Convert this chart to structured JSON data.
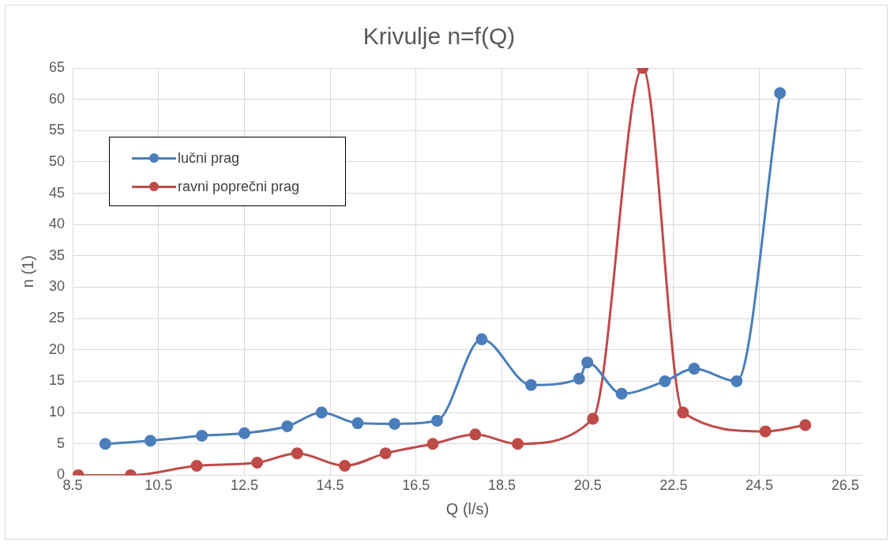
{
  "chart_data": {
    "type": "line",
    "title": "Krivulje n=f(Q)",
    "xlabel": "Q (l/s)",
    "ylabel": "n (1)",
    "xlim": [
      8.5,
      26.9
    ],
    "xticks": [
      8.5,
      10.5,
      12.5,
      14.5,
      16.5,
      18.5,
      20.5,
      22.5,
      24.5,
      26.5
    ],
    "ylim": [
      0,
      65
    ],
    "yticks": [
      0,
      5,
      10,
      15,
      20,
      25,
      30,
      35,
      40,
      45,
      50,
      55,
      60,
      65
    ],
    "grid": true,
    "legend": "top left",
    "marker": "circle",
    "line_style": "solid",
    "series": [
      {
        "name": "lučni prag",
        "color": "#4a7ebb",
        "x": [
          9.26,
          10.31,
          11.51,
          12.5,
          13.5,
          14.3,
          15.14,
          16.0,
          16.99,
          18.03,
          19.18,
          20.3,
          20.49,
          21.29,
          22.3,
          22.98,
          23.97,
          24.98
        ],
        "values": [
          5,
          5.5,
          6.3,
          6.7,
          7.8,
          10,
          8.3,
          8.2,
          8.7,
          21.7,
          14.4,
          15.4,
          18,
          13,
          15,
          17,
          15,
          61
        ]
      },
      {
        "name": "ravni poprečni prag",
        "color": "#be4b48",
        "x": [
          8.63,
          9.85,
          11.39,
          12.8,
          13.73,
          14.84,
          15.79,
          16.89,
          17.88,
          18.87,
          20.62,
          21.78,
          22.72,
          24.64,
          25.57
        ],
        "values": [
          0,
          0,
          1.5,
          2,
          3.5,
          1.5,
          3.5,
          5,
          6.5,
          5,
          9,
          65,
          10,
          7,
          8
        ]
      }
    ]
  }
}
